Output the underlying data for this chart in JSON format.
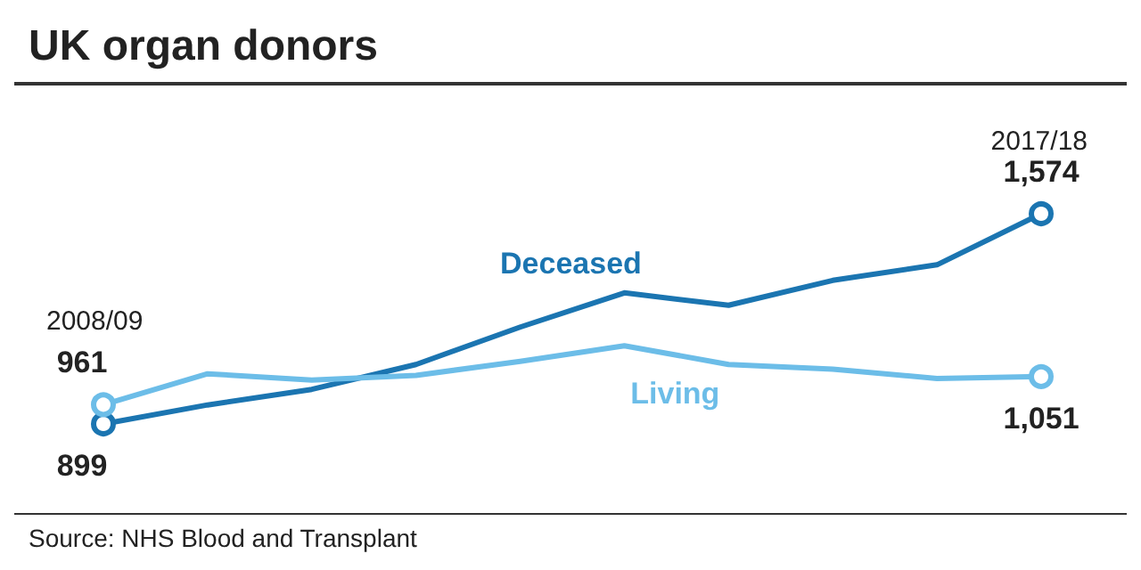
{
  "chart_data": {
    "type": "line",
    "title": "UK organ donors",
    "categories": [
      null,
      null,
      null,
      null,
      null,
      null,
      null,
      null,
      null,
      null
    ],
    "series": [
      {
        "name": "Deceased",
        "color": "#1b75b1",
        "values": [
          899,
          960,
          1010,
          1090,
          1210,
          1320,
          1280,
          1360,
          1410,
          1574
        ],
        "value_labels": [
          "899",
          null,
          null,
          null,
          null,
          null,
          null,
          null,
          null,
          "1,574"
        ]
      },
      {
        "name": "Living",
        "color": "#6cbde8",
        "values": [
          961,
          1060,
          1040,
          1055,
          1100,
          1150,
          1090,
          1075,
          1045,
          1051
        ],
        "value_labels": [
          "961",
          null,
          null,
          null,
          null,
          null,
          null,
          null,
          null,
          "1,051"
        ]
      }
    ],
    "annotations": [
      "2008/09",
      "2017/18",
      "Source: NHS Blood and Transplant"
    ],
    "legend": false,
    "grid": false
  }
}
